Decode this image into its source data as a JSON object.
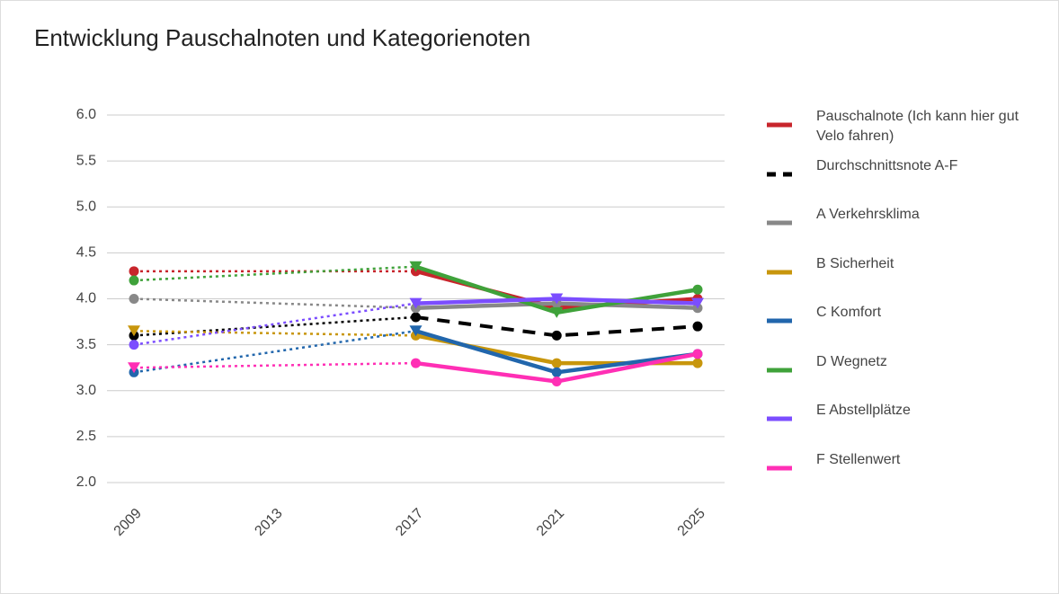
{
  "chart_data": {
    "type": "line",
    "title": "Entwicklung Pauschalnoten und Kategorienoten",
    "x": [
      2009,
      2017,
      2021,
      2025
    ],
    "xlim": [
      2009,
      2025
    ],
    "xticks": [
      2009,
      2013,
      2017,
      2021,
      2025
    ],
    "ylim": [
      2,
      6
    ],
    "yticks": [
      {
        "value": 2,
        "label": "2.0"
      },
      {
        "value": 2.5,
        "label": "2.5"
      },
      {
        "value": 3,
        "label": "3.0"
      },
      {
        "value": 3.5,
        "label": "3.5"
      },
      {
        "value": 4,
        "label": "4.0"
      },
      {
        "value": 4.5,
        "label": "4.5"
      },
      {
        "value": 5,
        "label": "5.0"
      },
      {
        "value": 5.5,
        "label": "5.5"
      },
      {
        "value": 6,
        "label": "6.0"
      }
    ],
    "grid": true,
    "legend": "right",
    "series": [
      {
        "name": "Pauschalnote (Ich kann hier gut Velo fahren)",
        "color": "#c8252c",
        "values": [
          4.3,
          4.3,
          3.9,
          4.0
        ],
        "markers": [
          "circle",
          "circle",
          "circle",
          "circle"
        ]
      },
      {
        "name": "Durchschnittsnote A-F",
        "color": "#000000",
        "dash": true,
        "values": [
          3.6,
          3.8,
          3.6,
          3.7
        ],
        "markers": [
          "circle",
          "circle",
          "circle",
          "circle"
        ]
      },
      {
        "name": "A Verkehrsklima",
        "color": "#888888",
        "values": [
          4.0,
          3.9,
          3.95,
          3.9
        ],
        "markers": [
          "circle",
          "circle",
          "circle",
          "circle"
        ]
      },
      {
        "name": "B Sicherheit",
        "color": "#c8960c",
        "values": [
          3.65,
          3.6,
          3.3,
          3.3
        ],
        "markers": [
          "triangle",
          "circle",
          "circle",
          "circle"
        ]
      },
      {
        "name": "C Komfort",
        "color": "#2166ac",
        "values": [
          3.2,
          3.65,
          3.2,
          3.4
        ],
        "markers": [
          "circle",
          "triangle",
          "circle",
          "circle"
        ]
      },
      {
        "name": "D Wegnetz",
        "color": "#3fa23a",
        "values": [
          4.2,
          4.35,
          3.85,
          4.1
        ],
        "markers": [
          "circle",
          "triangle",
          "triangle",
          "circle"
        ]
      },
      {
        "name": "E Abstellplätze",
        "color": "#7b4dff",
        "values": [
          3.5,
          3.95,
          4.0,
          3.95
        ],
        "markers": [
          "circle",
          "triangle",
          "triangle",
          "triangle"
        ]
      },
      {
        "name": "F Stellenwert",
        "color": "#ff2fb5",
        "values": [
          3.25,
          3.3,
          3.1,
          3.4
        ],
        "markers": [
          "triangle",
          "circle",
          "circle",
          "circle"
        ]
      }
    ]
  }
}
